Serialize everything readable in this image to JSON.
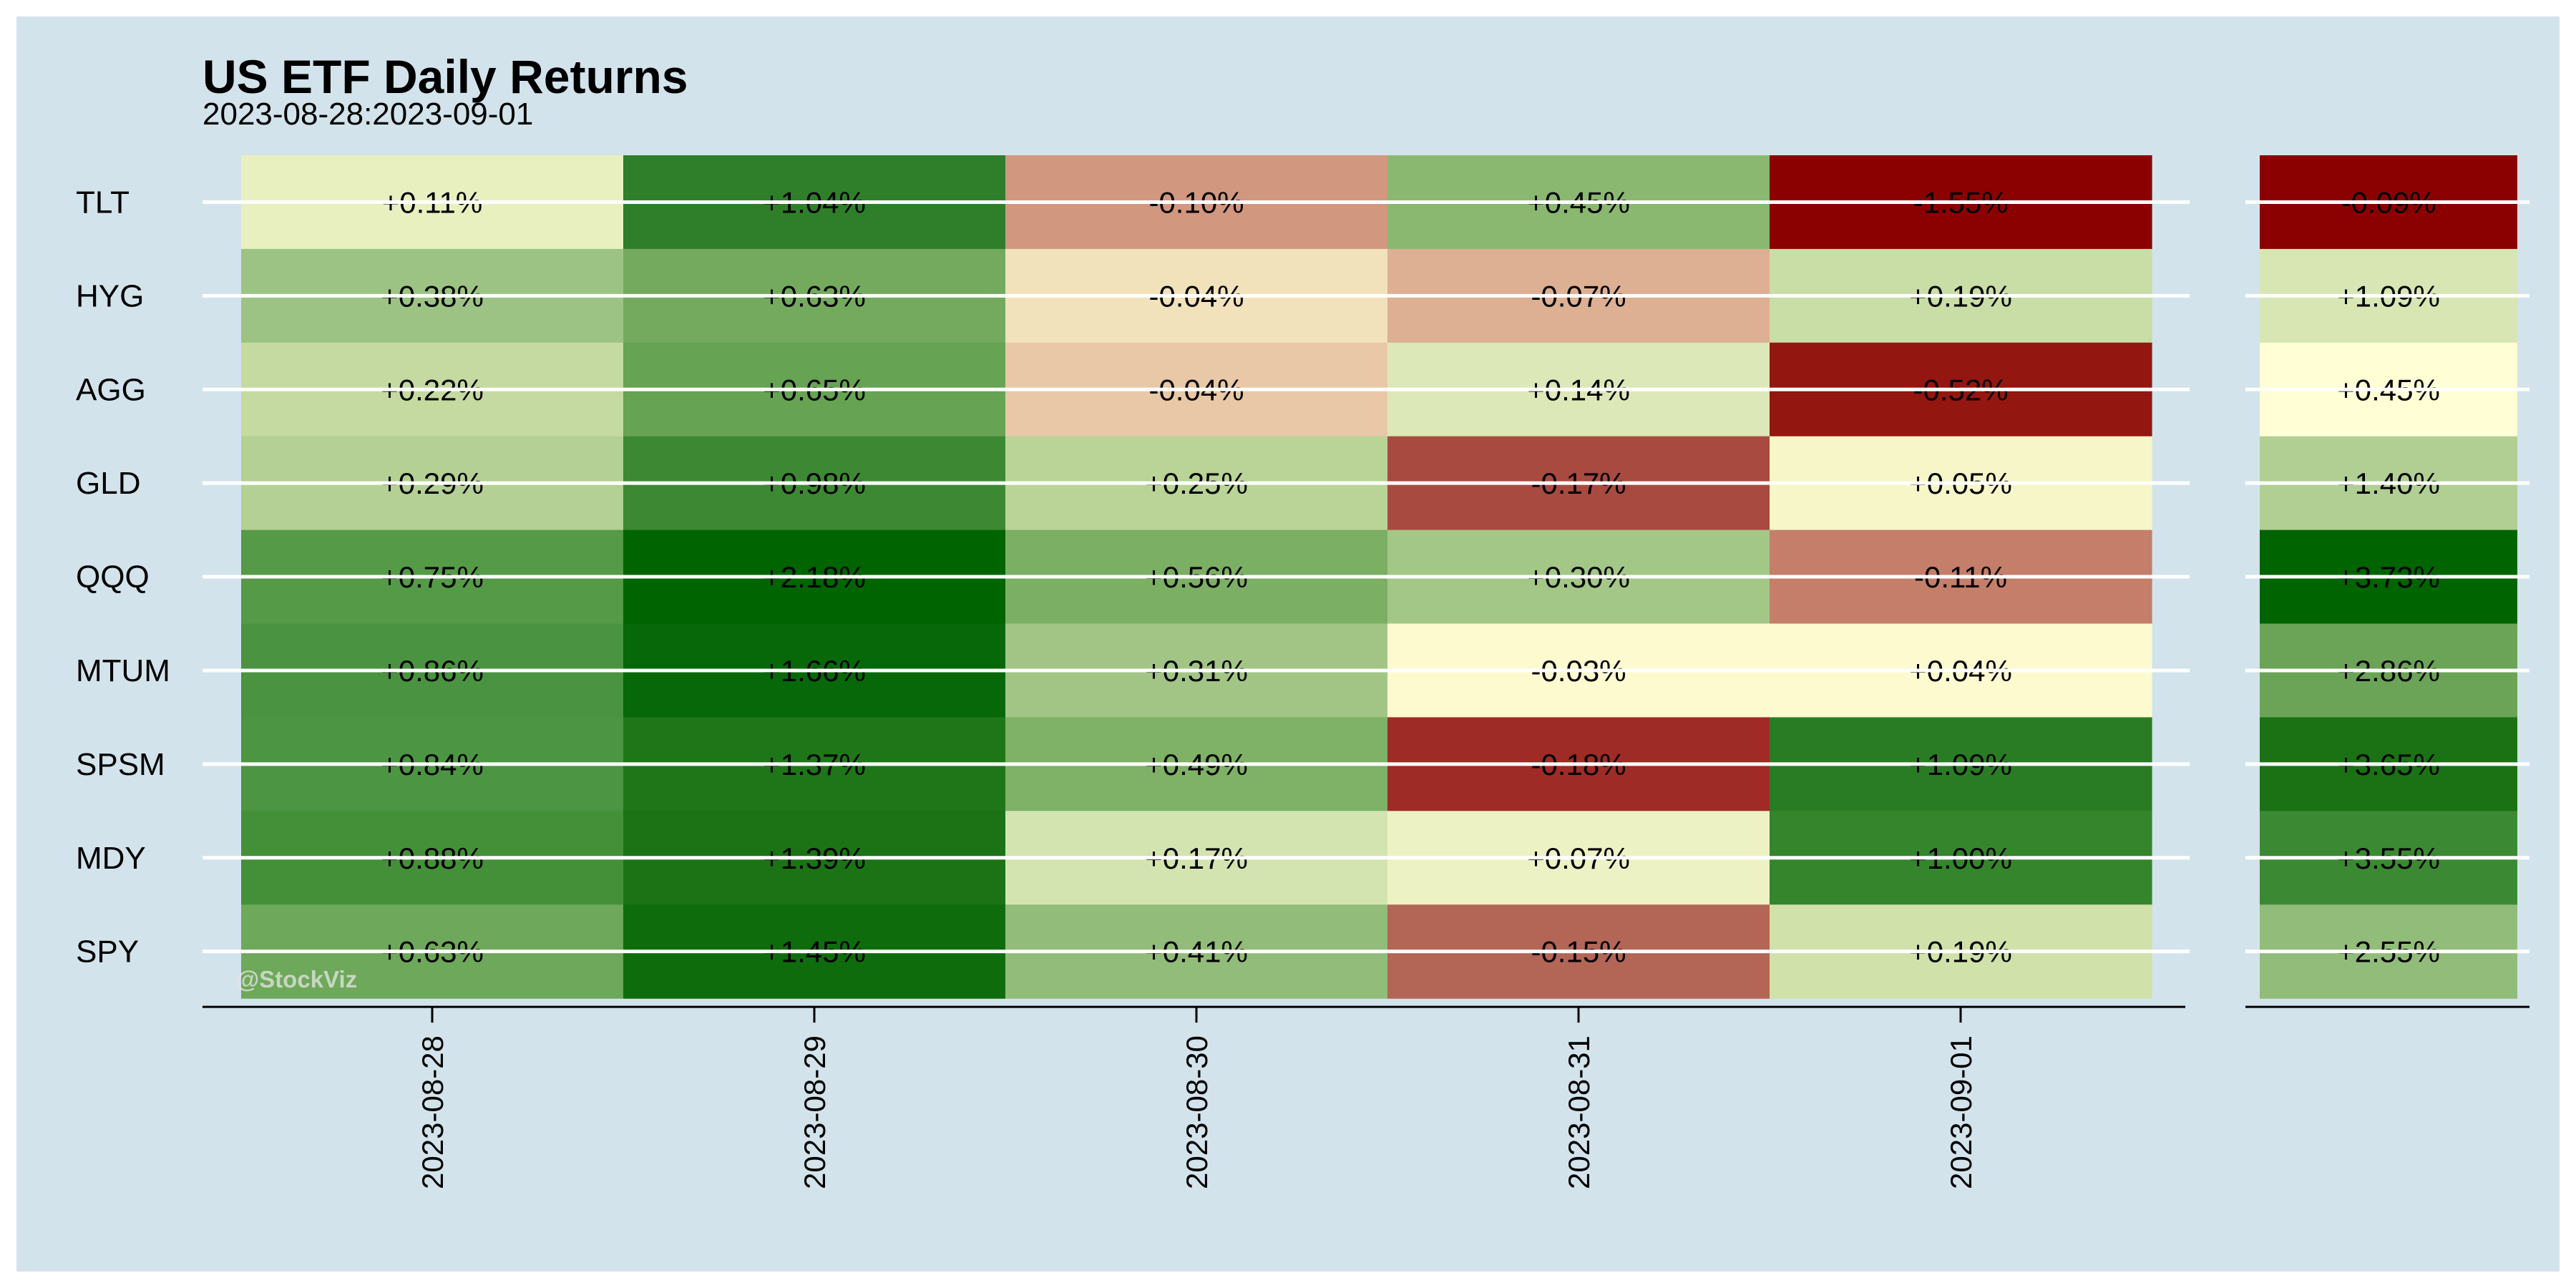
{
  "chart_data": [
    {
      "type": "heatmap",
      "title": "US ETF Daily Returns",
      "subtitle": "2023-08-28:2023-09-01",
      "rows": [
        "TLT",
        "HYG",
        "AGG",
        "GLD",
        "QQQ",
        "MTUM",
        "SPSM",
        "MDY",
        "SPY"
      ],
      "columns": [
        "2023-08-28",
        "2023-08-29",
        "2023-08-30",
        "2023-08-31",
        "2023-09-01"
      ],
      "values": [
        [
          0.11,
          1.04,
          -0.1,
          0.45,
          -1.55
        ],
        [
          0.38,
          0.63,
          -0.04,
          -0.07,
          0.19
        ],
        [
          0.22,
          0.65,
          -0.04,
          0.14,
          -0.52
        ],
        [
          0.29,
          0.98,
          0.25,
          -0.17,
          0.05
        ],
        [
          0.75,
          2.18,
          0.56,
          0.3,
          -0.11
        ],
        [
          0.86,
          1.66,
          0.31,
          -0.03,
          0.04
        ],
        [
          0.84,
          1.37,
          0.49,
          -0.18,
          1.09
        ],
        [
          0.88,
          1.39,
          0.17,
          0.07,
          1.0
        ],
        [
          0.63,
          1.45,
          0.41,
          -0.15,
          0.19
        ]
      ],
      "labels": [
        [
          "+0.11%",
          "+1.04%",
          "-0.10%",
          "+0.45%",
          "-1.55%"
        ],
        [
          "+0.38%",
          "+0.63%",
          "-0.04%",
          "-0.07%",
          "+0.19%"
        ],
        [
          "+0.22%",
          "+0.65%",
          "-0.04%",
          "+0.14%",
          "-0.52%"
        ],
        [
          "+0.29%",
          "+0.98%",
          "+0.25%",
          "-0.17%",
          "+0.05%"
        ],
        [
          "+0.75%",
          "+2.18%",
          "+0.56%",
          "+0.30%",
          "-0.11%"
        ],
        [
          "+0.86%",
          "+1.66%",
          "+0.31%",
          "-0.03%",
          "+0.04%"
        ],
        [
          "+0.84%",
          "+1.37%",
          "+0.49%",
          "-0.18%",
          "+1.09%"
        ],
        [
          "+0.88%",
          "+1.39%",
          "+0.17%",
          "+0.07%",
          "+1.00%"
        ],
        [
          "+0.63%",
          "+1.45%",
          "+0.41%",
          "-0.15%",
          "+0.19%"
        ]
      ],
      "colors": [
        [
          "#e8f0c0",
          "#2f7f2a",
          "#d2977f",
          "#8ab870",
          "#8b0000"
        ],
        [
          "#9cc384",
          "#74aa5e",
          "#f1e2bb",
          "#ddaf93",
          "#c9dda6"
        ],
        [
          "#c4daa0",
          "#66a352",
          "#e8c8a6",
          "#dde8b8",
          "#941610"
        ],
        [
          "#b4d094",
          "#3d8833",
          "#b9d496",
          "#a84a40",
          "#f6f6c8"
        ],
        [
          "#559a47",
          "#006400",
          "#7baf64",
          "#a3c787",
          "#c47e6a"
        ],
        [
          "#4a9340",
          "#066808",
          "#a2c586",
          "#fdfad0",
          "#fdfad0"
        ],
        [
          "#4c9542",
          "#1f7619",
          "#7fb166",
          "#9e2b25",
          "#2a7c24"
        ],
        [
          "#449039",
          "#1b7316",
          "#d4e4b0",
          "#edf2c4",
          "#35852d"
        ],
        [
          "#6ea85a",
          "#0f6c0c",
          "#92bc79",
          "#b36556",
          "#d0e2aa"
        ]
      ]
    },
    {
      "type": "heatmap",
      "rows": [
        "TLT",
        "HYG",
        "AGG",
        "GLD",
        "QQQ",
        "MTUM",
        "SPSM",
        "MDY",
        "SPY"
      ],
      "values": [
        -0.09,
        1.09,
        0.45,
        1.4,
        3.73,
        2.86,
        3.65,
        3.55,
        2.55
      ],
      "labels": [
        "-0.09%",
        "+1.09%",
        "+0.45%",
        "+1.40%",
        "+3.73%",
        "+2.86%",
        "+3.65%",
        "+3.55%",
        "+2.55%"
      ],
      "colors": [
        "#8b0000",
        "#d8e6b4",
        "#fffed4",
        "#b1cf93",
        "#006400",
        "#6ba457",
        "#1a7215",
        "#3b8a33",
        "#92bc7a"
      ]
    }
  ],
  "watermark": "@StockViz"
}
